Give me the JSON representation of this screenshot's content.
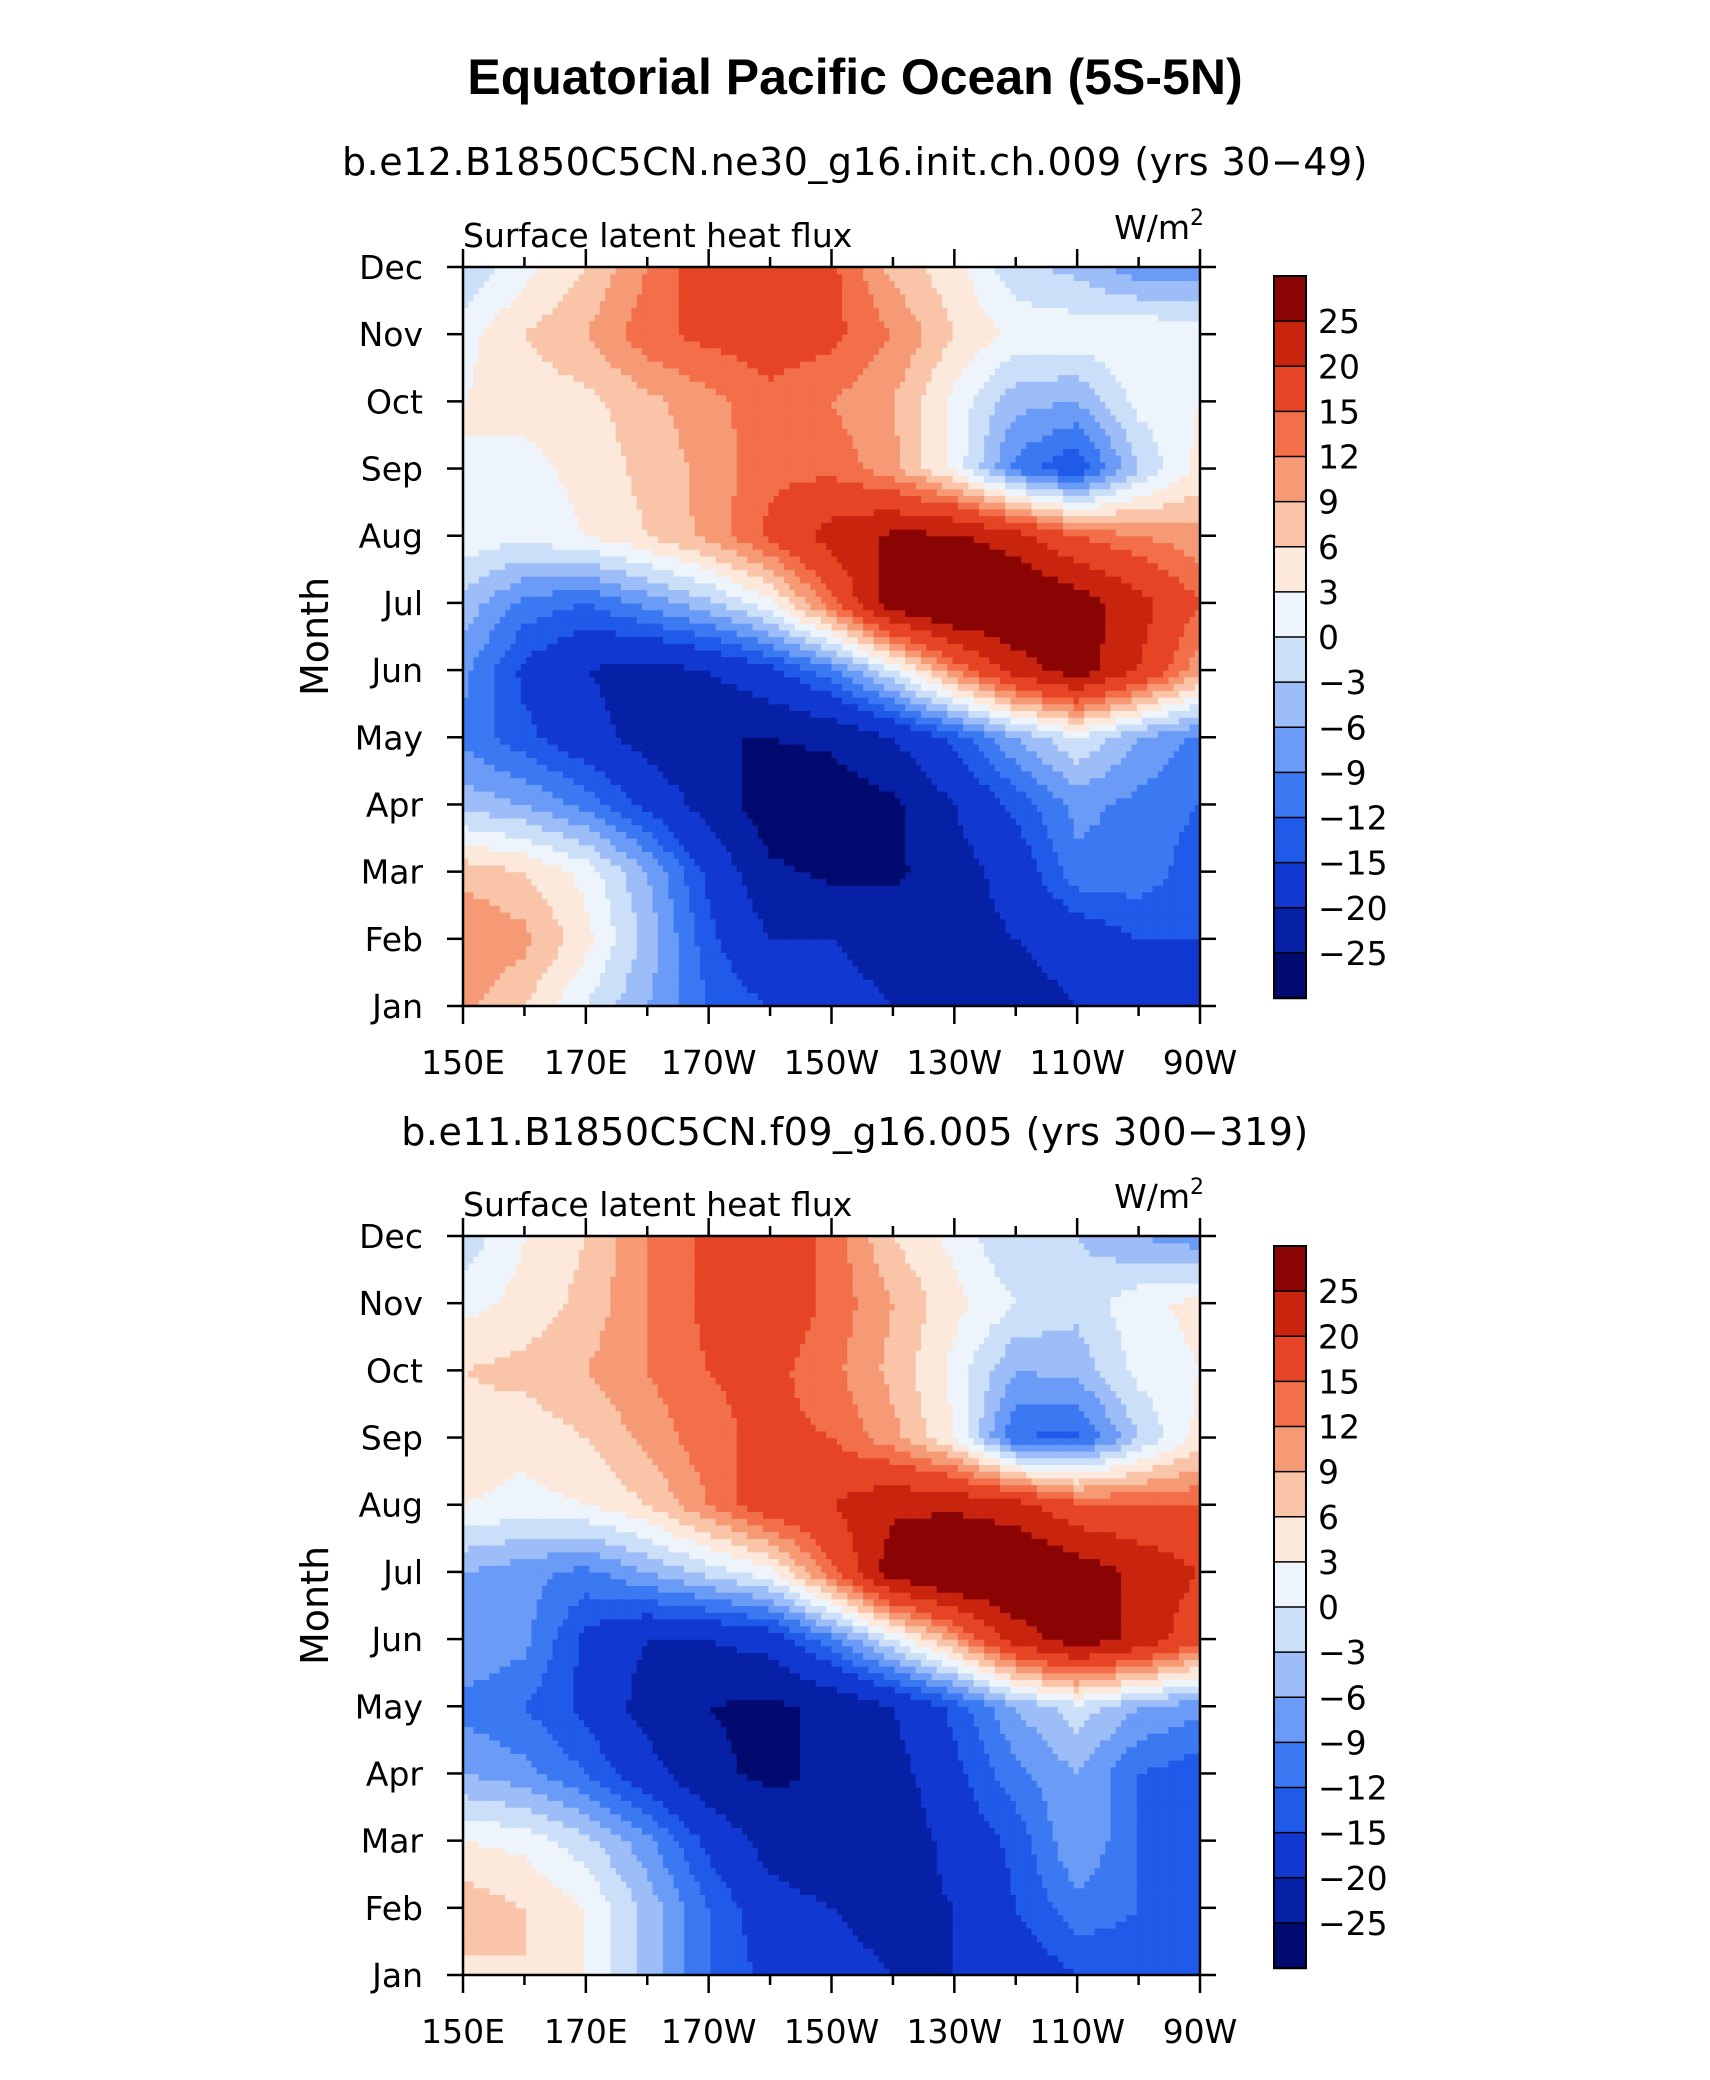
{
  "figure": {
    "title": "Equatorial Pacific Ocean (5S-5N)"
  },
  "chart_data": [
    {
      "type": "heatmap",
      "case_title": "b.e12.B1850C5CN.ne30_g16.init.ch.009 (yrs 30−49)",
      "panel_label": "Surface latent heat flux",
      "units_prefix": "W/m",
      "units_sup": "2",
      "ylabel": "Month",
      "x_tick_labels": [
        "150E",
        "170E",
        "170W",
        "150W",
        "130W",
        "110W",
        "90W"
      ],
      "y_tick_labels": [
        "Jan",
        "Feb",
        "Mar",
        "Apr",
        "May",
        "Jun",
        "Jul",
        "Aug",
        "Sep",
        "Oct",
        "Nov",
        "Dec"
      ],
      "x": [
        150,
        160,
        170,
        180,
        190,
        200,
        210,
        220,
        230,
        240,
        250,
        260,
        270
      ],
      "y": [
        "Jan",
        "Feb",
        "Mar",
        "Apr",
        "May",
        "Jun",
        "Jul",
        "Aug",
        "Sep",
        "Oct",
        "Nov",
        "Dec"
      ],
      "z": [
        [
          10,
          6,
          0,
          -6,
          -12,
          -15,
          -18,
          -20,
          -22,
          -22,
          -20,
          -20,
          -18
        ],
        [
          12,
          10,
          4,
          -4,
          -14,
          -20,
          -20,
          -22,
          -22,
          -20,
          -18,
          -15,
          -15
        ],
        [
          8,
          6,
          2,
          -6,
          -16,
          -24,
          -26,
          -26,
          -22,
          -18,
          -10,
          -10,
          -14
        ],
        [
          -4,
          -6,
          -10,
          -16,
          -22,
          -28,
          -28,
          -26,
          -20,
          -14,
          -8,
          -10,
          -12
        ],
        [
          -10,
          -14,
          -18,
          -22,
          -25,
          -25,
          -24,
          -20,
          -14,
          -6,
          0,
          -6,
          -10
        ],
        [
          -8,
          -16,
          -20,
          -22,
          -20,
          -16,
          -10,
          0,
          12,
          22,
          28,
          20,
          10
        ],
        [
          -4,
          -10,
          -12,
          -8,
          -4,
          2,
          14,
          28,
          32,
          32,
          28,
          22,
          15
        ],
        [
          2,
          1,
          3,
          6,
          10,
          16,
          22,
          26,
          26,
          22,
          15,
          12,
          10
        ],
        [
          3,
          2,
          4,
          7,
          10,
          14,
          14,
          10,
          2,
          -10,
          -15,
          -3,
          4
        ],
        [
          3,
          4,
          5,
          8,
          11,
          14,
          12,
          9,
          2,
          -5,
          -6,
          1,
          3
        ],
        [
          2,
          6,
          9,
          14,
          16,
          17,
          16,
          12,
          6,
          2,
          2,
          3,
          2
        ],
        [
          -3,
          2,
          6,
          12,
          18,
          20,
          16,
          8,
          4,
          -2,
          -4,
          -8,
          -8
        ]
      ],
      "levels": [
        -25,
        -20,
        -15,
        -12,
        -9,
        -6,
        -3,
        0,
        3,
        6,
        9,
        12,
        15,
        20,
        25
      ],
      "colors": [
        "#010a6e",
        "#0721a6",
        "#1238d2",
        "#1f5ae8",
        "#3b79f2",
        "#6a9bf6",
        "#9dbdf8",
        "#cbdff9",
        "#eef4fb",
        "#fde8dc",
        "#f9c4a8",
        "#f69a76",
        "#f26f4a",
        "#e64525",
        "#c8240e",
        "#8a0404"
      ],
      "colorbar_labels": [
        "25",
        "20",
        "15",
        "12",
        "9",
        "6",
        "3",
        "0",
        "−3",
        "−6",
        "−9",
        "−12",
        "−15",
        "−20",
        "−25"
      ]
    },
    {
      "type": "heatmap",
      "case_title": "b.e11.B1850C5CN.f09_g16.005 (yrs 300−319)",
      "panel_label": "Surface latent heat flux",
      "units_prefix": "W/m",
      "units_sup": "2",
      "ylabel": "Month",
      "x_tick_labels": [
        "150E",
        "170E",
        "170W",
        "150W",
        "130W",
        "110W",
        "90W"
      ],
      "y_tick_labels": [
        "Jan",
        "Feb",
        "Mar",
        "Apr",
        "May",
        "Jun",
        "Jul",
        "Aug",
        "Sep",
        "Oct",
        "Nov",
        "Dec"
      ],
      "x": [
        150,
        160,
        170,
        180,
        190,
        200,
        210,
        220,
        230,
        240,
        250,
        260,
        270
      ],
      "y": [
        "Jan",
        "Feb",
        "Mar",
        "Apr",
        "May",
        "Jun",
        "Jul",
        "Aug",
        "Sep",
        "Oct",
        "Nov",
        "Dec"
      ],
      "z": [
        [
          5,
          6,
          3,
          -4,
          -12,
          -16,
          -18,
          -20,
          -20,
          -18,
          -15,
          -14,
          -14
        ],
        [
          8,
          6,
          3,
          -4,
          -12,
          -18,
          -20,
          -22,
          -20,
          -15,
          -10,
          -12,
          -14
        ],
        [
          3,
          2,
          -2,
          -8,
          -16,
          -22,
          -24,
          -24,
          -18,
          -14,
          -6,
          -12,
          -14
        ],
        [
          -6,
          -8,
          -12,
          -18,
          -24,
          -26,
          -24,
          -22,
          -16,
          -10,
          -6,
          -12,
          -14
        ],
        [
          -10,
          -12,
          -16,
          -22,
          -25,
          -26,
          -24,
          -20,
          -14,
          -6,
          -1,
          -6,
          -8
        ],
        [
          -6,
          -8,
          -16,
          -20,
          -20,
          -18,
          -10,
          0,
          10,
          22,
          28,
          24,
          16
        ],
        [
          -6,
          -8,
          -10,
          -6,
          -2,
          2,
          14,
          28,
          32,
          32,
          28,
          24,
          20
        ],
        [
          3,
          2,
          3,
          6,
          12,
          18,
          20,
          24,
          24,
          22,
          16,
          15,
          15
        ],
        [
          5,
          4,
          6,
          10,
          14,
          16,
          15,
          10,
          3,
          -12,
          -13,
          -3,
          4
        ],
        [
          6,
          7,
          9,
          12,
          15,
          16,
          13,
          8,
          2,
          -6,
          -5,
          1,
          3
        ],
        [
          2,
          4,
          7,
          12,
          16,
          18,
          14,
          9,
          4,
          0,
          -2,
          2,
          4
        ],
        [
          -2,
          3,
          6,
          12,
          16,
          18,
          14,
          6,
          2,
          -3,
          -3,
          -6,
          -8
        ]
      ],
      "levels": [
        -25,
        -20,
        -15,
        -12,
        -9,
        -6,
        -3,
        0,
        3,
        6,
        9,
        12,
        15,
        20,
        25
      ],
      "colors": [
        "#010a6e",
        "#0721a6",
        "#1238d2",
        "#1f5ae8",
        "#3b79f2",
        "#6a9bf6",
        "#9dbdf8",
        "#cbdff9",
        "#eef4fb",
        "#fde8dc",
        "#f9c4a8",
        "#f69a76",
        "#f26f4a",
        "#e64525",
        "#c8240e",
        "#8a0404"
      ],
      "colorbar_labels": [
        "25",
        "20",
        "15",
        "12",
        "9",
        "6",
        "3",
        "0",
        "−3",
        "−6",
        "−9",
        "−12",
        "−15",
        "−20",
        "−25"
      ]
    }
  ]
}
